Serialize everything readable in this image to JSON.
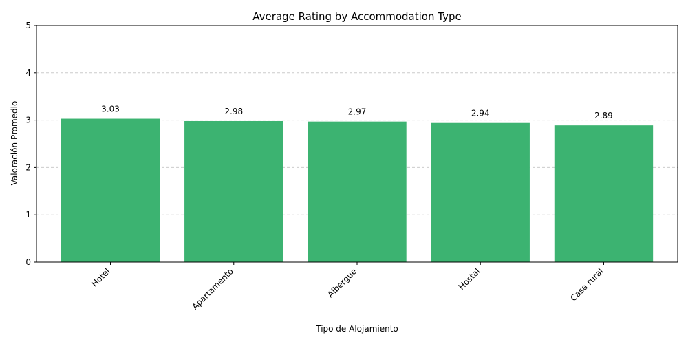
{
  "chart_data": {
    "type": "bar",
    "title": "Average Rating by Accommodation Type",
    "xlabel": "Tipo de Alojamiento",
    "ylabel": "Valoración Promedio",
    "categories": [
      "Hotel",
      "Apartamento",
      "Albergue",
      "Hostal",
      "Casa rural"
    ],
    "values": [
      3.03,
      2.98,
      2.97,
      2.94,
      2.89
    ],
    "data_labels": [
      "3.03",
      "2.98",
      "2.97",
      "2.94",
      "2.89"
    ],
    "ylim": [
      0,
      5
    ],
    "yticks": [
      0,
      1,
      2,
      3,
      4,
      5
    ],
    "grid": "y-dashed",
    "bar_color": "#3cb371",
    "legend": "none"
  }
}
